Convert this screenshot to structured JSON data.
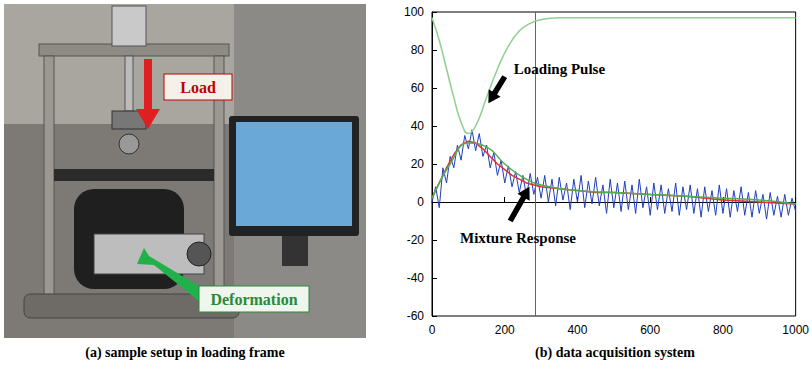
{
  "photo": {
    "caption": "(a) sample setup in loading frame",
    "load_label": "Load",
    "deformation_label": "Deformation"
  },
  "chart_data": {
    "type": "line",
    "caption": "(b) data acquisition system",
    "xlim": [
      0,
      1000
    ],
    "xticks": [
      0,
      200,
      400,
      600,
      800,
      1000
    ],
    "ylim": [
      -60,
      100
    ],
    "yticks": [
      -60,
      -40,
      -20,
      0,
      20,
      40,
      60,
      80,
      100
    ],
    "grid": false,
    "reference_x": 285,
    "reference_color": "#e03030",
    "series": [
      {
        "color": "#1f3fbf",
        "x": [
          0,
          10,
          20,
          30,
          40,
          50,
          60,
          70,
          80,
          90,
          100,
          110,
          120,
          130,
          140,
          150,
          160,
          170,
          180,
          190,
          200,
          210,
          220,
          230,
          240,
          250,
          260,
          270,
          280,
          290,
          300,
          310,
          320,
          330,
          340,
          350,
          360,
          370,
          380,
          390,
          400,
          410,
          420,
          430,
          440,
          450,
          460,
          470,
          480,
          490,
          500,
          510,
          520,
          530,
          540,
          550,
          560,
          570,
          580,
          590,
          600,
          610,
          620,
          630,
          640,
          650,
          660,
          670,
          680,
          690,
          700,
          710,
          720,
          730,
          740,
          750,
          760,
          770,
          780,
          790,
          800,
          810,
          820,
          830,
          840,
          850,
          860,
          870,
          880,
          890,
          900,
          910,
          920,
          930,
          940,
          950,
          960,
          970,
          980,
          990,
          1000
        ],
        "values": [
          0,
          8,
          -3,
          18,
          10,
          24,
          18,
          30,
          22,
          35,
          28,
          38,
          27,
          36,
          24,
          30,
          18,
          26,
          14,
          22,
          10,
          19,
          8,
          16,
          5,
          14,
          3,
          15,
          4,
          13,
          2,
          14,
          0,
          12,
          -2,
          13,
          1,
          10,
          -4,
          12,
          0,
          14,
          -3,
          11,
          -1,
          13,
          -2,
          9,
          -6,
          12,
          -3,
          10,
          -5,
          11,
          -4,
          9,
          -6,
          12,
          -3,
          8,
          -7,
          10,
          -4,
          9,
          -6,
          7,
          -5,
          10,
          -7,
          8,
          -4,
          9,
          -6,
          7,
          -8,
          8,
          -5,
          6,
          -7,
          9,
          -6,
          7,
          -8,
          6,
          -5,
          8,
          -7,
          5,
          -8,
          6,
          -6,
          4,
          -9,
          5,
          -7,
          3,
          -8,
          4,
          -7,
          2,
          -5
        ]
      },
      {
        "color": "#e03030",
        "x": [
          0,
          20,
          40,
          60,
          80,
          100,
          120,
          140,
          160,
          180,
          200,
          220,
          240,
          260,
          280,
          300,
          350,
          400,
          450,
          500,
          600,
          700,
          800,
          900,
          1000
        ],
        "values": [
          2,
          10,
          18,
          25,
          30,
          32,
          31,
          28,
          24,
          20,
          17,
          14,
          12,
          10,
          9,
          8,
          7,
          6,
          5,
          5,
          4,
          3,
          1,
          0,
          -1
        ]
      },
      {
        "color": "#50b050",
        "x": [
          0,
          50,
          100,
          150,
          200,
          250,
          300,
          400,
          500,
          600,
          700,
          800,
          900,
          1000
        ],
        "values": [
          2,
          20,
          31,
          29,
          20,
          13,
          9,
          6,
          5,
          4,
          3,
          2,
          1,
          -1
        ]
      },
      {
        "color": "#8fd08f",
        "x": [
          0,
          20,
          40,
          60,
          80,
          100,
          120,
          150,
          180,
          210,
          240,
          270,
          300,
          350,
          400,
          600,
          800,
          1000
        ],
        "values": [
          97,
          85,
          70,
          55,
          42,
          36,
          40,
          55,
          70,
          82,
          90,
          94,
          96,
          97,
          97,
          97,
          97,
          97
        ]
      }
    ],
    "annotations": [
      {
        "text": "Loading Pulse",
        "x": 225,
        "y": 70,
        "arrow_from": [
          200,
          66
        ],
        "arrow_to": [
          155,
          52
        ]
      },
      {
        "text": "Mixture Response",
        "x": 77,
        "y": -19,
        "arrow_from": [
          215,
          -10
        ],
        "arrow_to": [
          268,
          8
        ]
      }
    ]
  }
}
